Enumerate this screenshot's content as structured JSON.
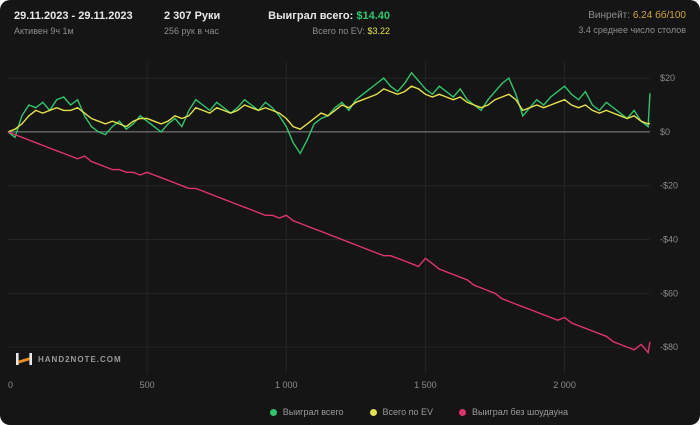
{
  "header": {
    "date_range": "29.11.2023 - 29.11.2023",
    "active_time": "Активен 9ч 1м",
    "hands": "2 307 Руки",
    "hands_per_hour": "256 рук в час",
    "won_total_label": "Выиграл всего:",
    "won_total_value": "$14.40",
    "ev_total_label": "Всего по EV:",
    "ev_total_value": "$3.22",
    "winrate_label": "Винрейт:",
    "winrate_value": "6.24 бб/100",
    "avg_tables": "3.4 среднее число столов"
  },
  "logo_text": "HAND2NOTE.COM",
  "colors": {
    "background": "#151515",
    "grid": "#242424",
    "zero_line": "#8a8a8a",
    "tick_text": "#8d8d8d",
    "won_green": "#2dc76d",
    "ev_yellow": "#e6e14a",
    "showdown_pink": "#e0336e",
    "winrate_gold": "#cfa63a"
  },
  "chart_data": {
    "type": "line",
    "title": "",
    "xlabel": "",
    "ylabel": "",
    "grid": true,
    "legend_position": "bottom",
    "xlim": [
      0,
      2307
    ],
    "ylim": [
      -90,
      26
    ],
    "x_step": 25,
    "x_ticks": [
      {
        "label": "0",
        "value": 0
      },
      {
        "label": "500",
        "value": 500
      },
      {
        "label": "1 000",
        "value": 1000
      },
      {
        "label": "1 500",
        "value": 1500
      },
      {
        "label": "2 000",
        "value": 2000
      }
    ],
    "y_ticks": [
      {
        "label": "$20",
        "value": 20
      },
      {
        "label": "$0",
        "value": 0
      },
      {
        "label": "-$20",
        "value": -20
      },
      {
        "label": "-$40",
        "value": -40
      },
      {
        "label": "-$60",
        "value": -60
      },
      {
        "label": "-$80",
        "value": -80
      }
    ],
    "series": [
      {
        "name": "Выиграл всего",
        "color": "#2dc76d",
        "values": [
          0,
          -2,
          6,
          10,
          9,
          11,
          8,
          12,
          13,
          10,
          12,
          6,
          2,
          0,
          -1,
          2,
          4,
          1,
          3,
          6,
          4,
          2,
          0,
          3,
          5,
          2,
          8,
          12,
          10,
          8,
          11,
          9,
          7,
          9,
          12,
          10,
          8,
          11,
          9,
          6,
          2,
          -4,
          -8,
          -3,
          3,
          5,
          6,
          9,
          11,
          8,
          12,
          14,
          16,
          18,
          20,
          17,
          15,
          18,
          22,
          19,
          16,
          14,
          17,
          15,
          13,
          16,
          12,
          10,
          8,
          12,
          15,
          18,
          20,
          14,
          6,
          9,
          12,
          10,
          13,
          15,
          17,
          14,
          12,
          15,
          10,
          8,
          11,
          9,
          7,
          5,
          8,
          4,
          2,
          14.4
        ]
      },
      {
        "name": "Всего по EV",
        "color": "#e6e14a",
        "values": [
          0,
          1,
          3,
          6,
          8,
          7,
          8,
          9,
          8,
          8,
          9,
          7,
          5,
          4,
          3,
          4,
          3,
          2,
          4,
          5,
          5,
          4,
          3,
          4,
          6,
          5,
          6,
          9,
          8,
          7,
          9,
          8,
          7,
          8,
          10,
          9,
          8,
          9,
          8,
          7,
          5,
          2,
          1,
          3,
          5,
          7,
          6,
          8,
          10,
          9,
          11,
          12,
          13,
          14,
          16,
          15,
          14,
          15,
          17,
          16,
          14,
          13,
          14,
          13,
          12,
          13,
          11,
          10,
          9,
          10,
          12,
          13,
          14,
          12,
          8,
          9,
          10,
          9,
          10,
          11,
          12,
          10,
          9,
          10,
          8,
          7,
          8,
          7,
          6,
          5,
          6,
          4,
          3,
          3.22
        ]
      },
      {
        "name": "Выиграл без шоудауна",
        "color": "#e0336e",
        "values": [
          0,
          -1,
          -2,
          -3,
          -4,
          -5,
          -6,
          -7,
          -8,
          -9,
          -10,
          -9,
          -11,
          -12,
          -13,
          -14,
          -14,
          -15,
          -15,
          -16,
          -15,
          -16,
          -17,
          -18,
          -19,
          -20,
          -21,
          -21,
          -22,
          -23,
          -24,
          -25,
          -26,
          -27,
          -28,
          -29,
          -30,
          -31,
          -31,
          -32,
          -31,
          -33,
          -34,
          -35,
          -36,
          -37,
          -38,
          -39,
          -40,
          -41,
          -42,
          -43,
          -44,
          -45,
          -46,
          -46,
          -47,
          -48,
          -49,
          -50,
          -47,
          -49,
          -51,
          -52,
          -53,
          -54,
          -55,
          -57,
          -58,
          -59,
          -60,
          -62,
          -63,
          -64,
          -65,
          -66,
          -67,
          -68,
          -69,
          -70,
          -69,
          -71,
          -72,
          -73,
          -74,
          -75,
          -76,
          -78,
          -79,
          -80,
          -81,
          -79,
          -82,
          -78
        ]
      }
    ]
  }
}
